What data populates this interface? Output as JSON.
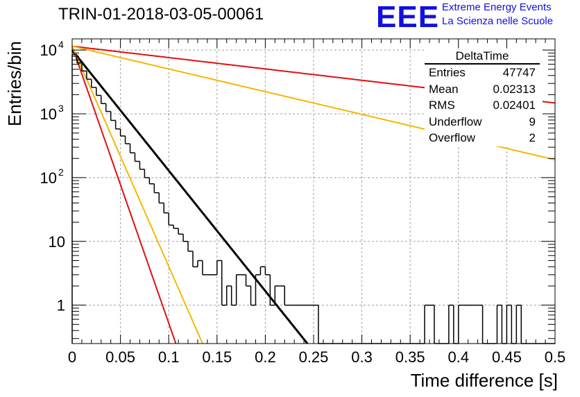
{
  "header": {
    "title": "TRIN-01-2018-03-05-00061",
    "logo_text": "EEE",
    "logo_line1": "Extreme Energy Events",
    "logo_line2": "La Scienza nelle Scuole"
  },
  "stats_box": {
    "name": "DeltaTime",
    "rows": [
      {
        "label": "Entries",
        "value": "47747"
      },
      {
        "label": "Mean",
        "value": "0.02313"
      },
      {
        "label": "RMS",
        "value": "0.02401"
      },
      {
        "label": "Underflow",
        "value": "9"
      },
      {
        "label": "Overflow",
        "value": "2"
      }
    ]
  },
  "colors": {
    "histogram": "#000000",
    "fit": "#000000",
    "red_bound": "#e01010",
    "orange_bound": "#f5b800",
    "grid": "#a0a0a0"
  },
  "chart_data": {
    "type": "line",
    "title": "TRIN-01-2018-03-05-00061",
    "xlabel": "Time difference [s]",
    "ylabel": "Entries/bin",
    "xlim": [
      0,
      0.5
    ],
    "ylim": [
      0.25,
      15000
    ],
    "y_scale": "log",
    "grid": true,
    "x_ticks": [
      "0",
      "0.05",
      "0.1",
      "0.15",
      "0.2",
      "0.25",
      "0.3",
      "0.35",
      "0.4",
      "0.45",
      "0.5"
    ],
    "y_ticks": [
      {
        "value": 1,
        "label": "1"
      },
      {
        "value": 10,
        "label": "10"
      },
      {
        "value": 100,
        "label": "10",
        "exp": "2"
      },
      {
        "value": 1000,
        "label": "10",
        "exp": "3"
      },
      {
        "value": 10000,
        "label": "10",
        "exp": "4"
      }
    ],
    "histogram": {
      "bin_width": 0.005,
      "counts": [
        8500,
        6300,
        4700,
        3500,
        2600,
        1950,
        1450,
        1090,
        790,
        580,
        450,
        340,
        245,
        180,
        135,
        100,
        80,
        58,
        40,
        28,
        18,
        16,
        13,
        10,
        7,
        4,
        5,
        3,
        3,
        3,
        5,
        1,
        2,
        1,
        3,
        3,
        2,
        1,
        3,
        4,
        3,
        1,
        2,
        2,
        1,
        1,
        1,
        1,
        1,
        1,
        1,
        0,
        0,
        0,
        0,
        0,
        0,
        0,
        0,
        0,
        0,
        0,
        0,
        0,
        0,
        0,
        0,
        0,
        0,
        0,
        0,
        0,
        0,
        1,
        1,
        0,
        0,
        0,
        1,
        0,
        1,
        1,
        1,
        1,
        1,
        0,
        0,
        0,
        1,
        0,
        1,
        0,
        1,
        0,
        0,
        0,
        0,
        0,
        0,
        0
      ]
    },
    "lines": [
      {
        "color": "black",
        "y0": 10000,
        "rate": 43.5
      },
      {
        "color": "red",
        "y0": 11500,
        "rate": 100
      },
      {
        "color": "orange",
        "y0": 11500,
        "rate": 79.5
      },
      {
        "color": "red",
        "y0": 11500,
        "rate": 4.1
      },
      {
        "color": "orange",
        "y0": 11500,
        "rate": 8.2
      }
    ]
  }
}
